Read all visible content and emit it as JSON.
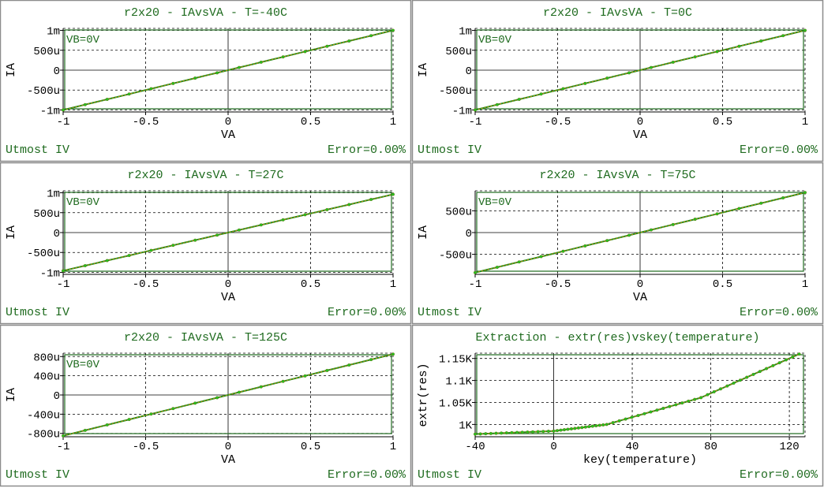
{
  "colors": {
    "panel_border": "#8c8c8c",
    "title": "#1f6b1f",
    "plot_frame": "#1f6b1f",
    "curve": "#b8860b",
    "marker": "#22c422",
    "grid": "#000000"
  },
  "chart_data": [
    {
      "type": "line",
      "title": "r2x20 - IAvsVA - T=-40C",
      "xlabel": "VA",
      "ylabel": "IA",
      "xlim": [
        -1,
        1
      ],
      "ylim": [
        -0.00105,
        0.00105
      ],
      "xticks": [
        -1,
        -0.5,
        0,
        0.5,
        1
      ],
      "xtick_labels": [
        "-1",
        "-0.5",
        "0",
        "0.5",
        "1"
      ],
      "yticks": [
        -0.001,
        -0.0005,
        0,
        0.0005,
        0.001
      ],
      "ytick_labels": [
        "-1m",
        "-500u",
        "0",
        "500u",
        "1m"
      ],
      "legend": "VB=0V",
      "footer_left": "Utmost IV",
      "footer_right": "Error=0.00%",
      "x": [
        -1,
        1
      ],
      "y": [
        -0.001,
        0.001
      ]
    },
    {
      "type": "line",
      "title": "r2x20 - IAvsVA - T=0C",
      "xlabel": "VA",
      "ylabel": "IA",
      "xlim": [
        -1,
        1
      ],
      "ylim": [
        -0.00105,
        0.00105
      ],
      "xticks": [
        -1,
        -0.5,
        0,
        0.5,
        1
      ],
      "xtick_labels": [
        "-1",
        "-0.5",
        "0",
        "0.5",
        "1"
      ],
      "yticks": [
        -0.001,
        -0.0005,
        0,
        0.0005,
        0.001
      ],
      "ytick_labels": [
        "-1m",
        "-500u",
        "0",
        "500u",
        "1m"
      ],
      "legend": "VB=0V",
      "footer_left": "Utmost IV",
      "footer_right": "Error=0.00%",
      "x": [
        -1,
        1
      ],
      "y": [
        -0.001,
        0.001
      ]
    },
    {
      "type": "line",
      "title": "r2x20 - IAvsVA - T=27C",
      "xlabel": "VA",
      "ylabel": "IA",
      "xlim": [
        -1,
        1
      ],
      "ylim": [
        -0.00105,
        0.00105
      ],
      "xticks": [
        -1,
        -0.5,
        0,
        0.5,
        1
      ],
      "xtick_labels": [
        "-1",
        "-0.5",
        "0",
        "0.5",
        "1"
      ],
      "yticks": [
        -0.001,
        -0.0005,
        0,
        0.0005,
        0.001
      ],
      "ytick_labels": [
        "-1m",
        "-500u",
        "0",
        "500u",
        "1m"
      ],
      "legend": "VB=0V",
      "footer_left": "Utmost IV",
      "footer_right": "Error=0.00%",
      "x": [
        -1,
        1
      ],
      "y": [
        -0.00096,
        0.00096
      ]
    },
    {
      "type": "line",
      "title": "r2x20 - IAvsVA - T=75C",
      "xlabel": "VA",
      "ylabel": "IA",
      "xlim": [
        -1,
        1
      ],
      "ylim": [
        -0.00096,
        0.00096
      ],
      "xticks": [
        -1,
        -0.5,
        0,
        0.5,
        1
      ],
      "xtick_labels": [
        "-1",
        "-0.5",
        "0",
        "0.5",
        "1"
      ],
      "yticks": [
        -0.0005,
        0,
        0.0005
      ],
      "ytick_labels": [
        "-500u",
        "0",
        "500u"
      ],
      "legend": "VB=0V",
      "footer_left": "Utmost IV",
      "footer_right": "Error=0.00%",
      "x": [
        -1,
        1
      ],
      "y": [
        -0.00092,
        0.00092
      ]
    },
    {
      "type": "line",
      "title": "r2x20 - IAvsVA - T=125C",
      "xlabel": "VA",
      "ylabel": "IA",
      "xlim": [
        -1,
        1
      ],
      "ylim": [
        -0.00087,
        0.00087
      ],
      "xticks": [
        -1,
        -0.5,
        0,
        0.5,
        1
      ],
      "xtick_labels": [
        "-1",
        "-0.5",
        "0",
        "0.5",
        "1"
      ],
      "yticks": [
        -0.0008,
        -0.0004,
        0,
        0.0004,
        0.0008
      ],
      "ytick_labels": [
        "-800u",
        "-400u",
        "0",
        "400u",
        "800u"
      ],
      "legend": "VB=0V",
      "footer_left": "Utmost IV",
      "footer_right": "Error=0.00%",
      "x": [
        -1,
        1
      ],
      "y": [
        -0.00085,
        0.00085
      ]
    },
    {
      "type": "line",
      "title": "Extraction - extr(res)vskey(temperature)",
      "xlabel": "key(temperature)",
      "ylabel": "extr(res)",
      "xlim": [
        -40,
        128
      ],
      "ylim": [
        972,
        1162
      ],
      "xticks": [
        -40,
        0,
        40,
        80,
        120
      ],
      "xtick_labels": [
        "-40",
        "0",
        "40",
        "80",
        "120"
      ],
      "yticks": [
        1000,
        1050,
        1100,
        1150
      ],
      "ytick_labels": [
        "1K",
        "1.05K",
        "1.1K",
        "1.15K"
      ],
      "legend": "",
      "footer_left": "Utmost IV",
      "footer_right": "Error=0.00%",
      "x": [
        -40,
        0,
        27,
        75,
        125
      ],
      "y": [
        978,
        985,
        1000,
        1061,
        1160
      ]
    }
  ]
}
